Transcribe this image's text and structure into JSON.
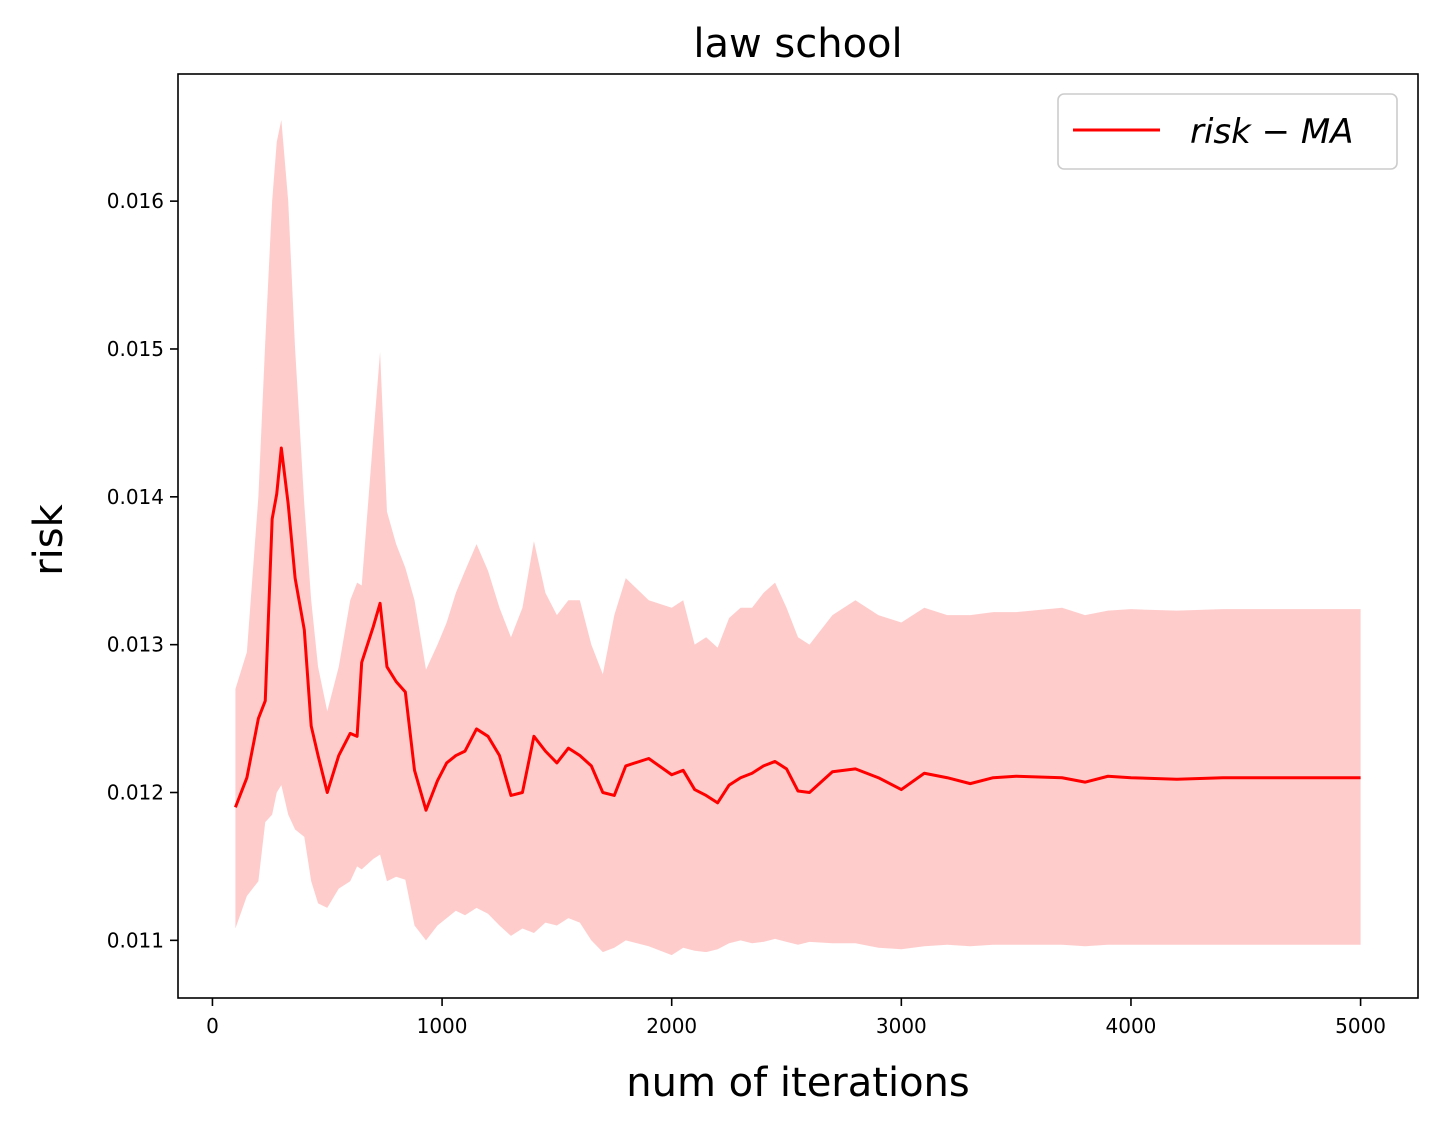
{
  "chart_data": {
    "type": "line",
    "title": "law school",
    "xlabel": "num of iterations",
    "ylabel": "risk",
    "xlim": [
      -150,
      5250
    ],
    "ylim": [
      0.01061,
      0.01686
    ],
    "xticks": [
      0,
      1000,
      2000,
      3000,
      4000,
      5000
    ],
    "xtick_labels": [
      "0",
      "1000",
      "2000",
      "3000",
      "4000",
      "5000"
    ],
    "yticks": [
      0.011,
      0.012,
      0.013,
      0.014,
      0.015,
      0.016
    ],
    "ytick_labels": [
      "0.011",
      "0.012",
      "0.013",
      "0.014",
      "0.015",
      "0.016"
    ],
    "grid": false,
    "legend_position": "upper right",
    "series": [
      {
        "name": "risk − MA",
        "color": "#ff0000",
        "band_color": "#ffcccc",
        "x": [
          100,
          150,
          200,
          230,
          260,
          280,
          300,
          330,
          360,
          400,
          430,
          460,
          500,
          550,
          600,
          630,
          650,
          700,
          730,
          760,
          800,
          840,
          880,
          930,
          980,
          1020,
          1060,
          1100,
          1150,
          1200,
          1250,
          1300,
          1350,
          1400,
          1450,
          1500,
          1550,
          1600,
          1650,
          1700,
          1750,
          1800,
          1900,
          2000,
          2050,
          2100,
          2150,
          2200,
          2250,
          2300,
          2350,
          2400,
          2450,
          2500,
          2550,
          2600,
          2700,
          2800,
          2900,
          3000,
          3100,
          3200,
          3300,
          3400,
          3500,
          3700,
          3800,
          3900,
          4000,
          4200,
          4400,
          4600,
          4800,
          5000
        ],
        "y": [
          0.0119,
          0.0121,
          0.0125,
          0.01262,
          0.01385,
          0.01402,
          0.01433,
          0.01395,
          0.01345,
          0.0131,
          0.01245,
          0.01225,
          0.012,
          0.01225,
          0.0124,
          0.01238,
          0.01288,
          0.01312,
          0.01328,
          0.01285,
          0.01275,
          0.01268,
          0.01215,
          0.01188,
          0.01208,
          0.0122,
          0.01225,
          0.01228,
          0.01243,
          0.01238,
          0.01225,
          0.01198,
          0.012,
          0.01238,
          0.01228,
          0.0122,
          0.0123,
          0.01225,
          0.01218,
          0.012,
          0.01198,
          0.01218,
          0.01223,
          0.01212,
          0.01215,
          0.01202,
          0.01198,
          0.01193,
          0.01205,
          0.0121,
          0.01213,
          0.01218,
          0.01221,
          0.01216,
          0.01201,
          0.012,
          0.01214,
          0.01216,
          0.0121,
          0.01202,
          0.01213,
          0.0121,
          0.01206,
          0.0121,
          0.01211,
          0.0121,
          0.01207,
          0.01211,
          0.0121,
          0.01209,
          0.0121,
          0.0121,
          0.0121,
          0.0121
        ],
        "upper": [
          0.0127,
          0.01295,
          0.014,
          0.01505,
          0.016,
          0.0164,
          0.01655,
          0.016,
          0.015,
          0.01395,
          0.0133,
          0.01285,
          0.01255,
          0.01285,
          0.0133,
          0.01342,
          0.0134,
          0.0144,
          0.01498,
          0.0139,
          0.01368,
          0.01352,
          0.0133,
          0.01283,
          0.013,
          0.01315,
          0.01335,
          0.0135,
          0.01368,
          0.0135,
          0.01325,
          0.01305,
          0.01325,
          0.0137,
          0.01335,
          0.0132,
          0.0133,
          0.0133,
          0.013,
          0.0128,
          0.0132,
          0.01345,
          0.0133,
          0.01325,
          0.0133,
          0.013,
          0.01305,
          0.01298,
          0.01318,
          0.01325,
          0.01325,
          0.01335,
          0.01342,
          0.01325,
          0.01305,
          0.013,
          0.0132,
          0.0133,
          0.0132,
          0.01315,
          0.01325,
          0.0132,
          0.0132,
          0.01322,
          0.01322,
          0.01325,
          0.0132,
          0.01323,
          0.01324,
          0.01323,
          0.01324,
          0.01324,
          0.01324,
          0.01324
        ],
        "lower": [
          0.01108,
          0.0113,
          0.0114,
          0.0118,
          0.01185,
          0.012,
          0.01205,
          0.01185,
          0.01175,
          0.0117,
          0.0114,
          0.01125,
          0.01122,
          0.01135,
          0.0114,
          0.0115,
          0.01148,
          0.01155,
          0.01158,
          0.0114,
          0.01143,
          0.01141,
          0.0111,
          0.011,
          0.0111,
          0.01115,
          0.0112,
          0.01117,
          0.01122,
          0.01118,
          0.0111,
          0.01103,
          0.01108,
          0.01105,
          0.01112,
          0.0111,
          0.01115,
          0.01112,
          0.011,
          0.01092,
          0.01095,
          0.011,
          0.01096,
          0.0109,
          0.01095,
          0.01093,
          0.01092,
          0.01094,
          0.01098,
          0.011,
          0.01098,
          0.01099,
          0.01101,
          0.01099,
          0.01097,
          0.01099,
          0.01098,
          0.01098,
          0.01095,
          0.01094,
          0.01096,
          0.01097,
          0.01096,
          0.01097,
          0.01097,
          0.01097,
          0.01096,
          0.01097,
          0.01097,
          0.01097,
          0.01097,
          0.01097,
          0.01097,
          0.01097
        ]
      }
    ]
  }
}
